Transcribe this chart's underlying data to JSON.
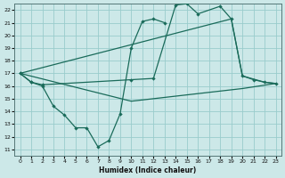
{
  "xlabel": "Humidex (Indice chaleur)",
  "bg_color": "#cce8e8",
  "grid_color": "#99cccc",
  "line_color": "#1a6b5a",
  "xlim": [
    -0.5,
    23.5
  ],
  "ylim": [
    10.5,
    22.5
  ],
  "sa_x": [
    0,
    1,
    2,
    3,
    4,
    5,
    6,
    7,
    8,
    9,
    10,
    11,
    12,
    13
  ],
  "sa_y": [
    17.0,
    16.3,
    16.0,
    14.4,
    13.7,
    12.7,
    12.7,
    11.2,
    11.7,
    13.8,
    19.0,
    21.1,
    21.3,
    21.0
  ],
  "sb_x": [
    0,
    1,
    2,
    10,
    12,
    14,
    15,
    16,
    18,
    19,
    20,
    21,
    22,
    23
  ],
  "sb_y": [
    17.0,
    16.3,
    16.1,
    16.5,
    16.6,
    22.4,
    22.5,
    21.7,
    22.3,
    21.3,
    16.8,
    16.5,
    16.3,
    16.2
  ],
  "upper_x": [
    0,
    19,
    20,
    22,
    23
  ],
  "upper_y": [
    17.0,
    21.3,
    16.8,
    16.3,
    16.2
  ],
  "lower_x": [
    0,
    10,
    15,
    20,
    23
  ],
  "lower_y": [
    17.0,
    14.8,
    15.3,
    15.8,
    16.2
  ]
}
